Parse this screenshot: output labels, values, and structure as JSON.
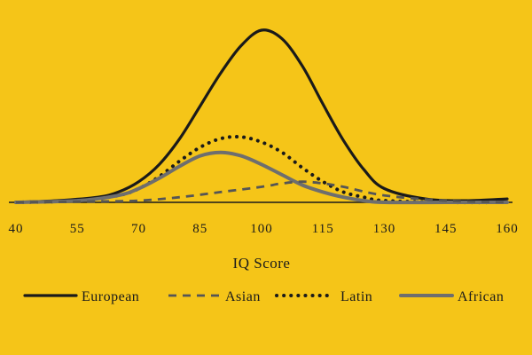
{
  "chart_data": {
    "type": "line",
    "title": "",
    "xlabel": "IQ Score",
    "ylabel": "",
    "xlim": [
      40,
      160
    ],
    "ylim": [
      0,
      1
    ],
    "grid": false,
    "legend_position": "bottom",
    "x_ticks": [
      "40",
      "55",
      "70",
      "85",
      "100",
      "115",
      "130",
      "145",
      "160"
    ],
    "x_tick_values": [
      40,
      55,
      70,
      85,
      100,
      115,
      130,
      145,
      160
    ],
    "series": [
      {
        "name": "European",
        "style": "solid",
        "color": "#1a1a1a",
        "x": [
          40,
          50,
          60,
          65,
          70,
          75,
          80,
          85,
          90,
          95,
          100,
          105,
          110,
          115,
          120,
          125,
          130,
          140,
          150,
          160
        ],
        "y": [
          0,
          0.01,
          0.03,
          0.06,
          0.12,
          0.22,
          0.37,
          0.56,
          0.75,
          0.91,
          1.0,
          0.95,
          0.79,
          0.57,
          0.36,
          0.19,
          0.08,
          0.02,
          0.01,
          0.02
        ]
      },
      {
        "name": "Asian",
        "style": "dashed",
        "color": "#555555",
        "x": [
          40,
          60,
          70,
          80,
          90,
          100,
          105,
          110,
          115,
          120,
          130,
          145,
          160
        ],
        "y": [
          0,
          0.005,
          0.01,
          0.03,
          0.06,
          0.09,
          0.11,
          0.12,
          0.11,
          0.09,
          0.04,
          0.01,
          0
        ]
      },
      {
        "name": "Latin",
        "style": "dotted",
        "color": "#1a1a1a",
        "x": [
          40,
          55,
          65,
          70,
          75,
          80,
          85,
          90,
          95,
          100,
          105,
          110,
          115,
          120,
          125,
          130,
          145,
          160
        ],
        "y": [
          0,
          0.01,
          0.04,
          0.08,
          0.15,
          0.24,
          0.32,
          0.37,
          0.38,
          0.35,
          0.29,
          0.2,
          0.12,
          0.06,
          0.03,
          0.01,
          0,
          0
        ]
      },
      {
        "name": "African",
        "style": "solid-thick",
        "color": "#6e6e6e",
        "x": [
          40,
          55,
          65,
          70,
          75,
          80,
          85,
          90,
          95,
          100,
          105,
          110,
          115,
          120,
          125,
          130,
          145,
          160
        ],
        "y": [
          0,
          0.01,
          0.04,
          0.08,
          0.14,
          0.21,
          0.27,
          0.29,
          0.27,
          0.22,
          0.16,
          0.1,
          0.06,
          0.03,
          0.01,
          0,
          0,
          0
        ]
      }
    ]
  },
  "colors": {
    "background": "#f5c518",
    "baseline": "#1a1a1a"
  }
}
